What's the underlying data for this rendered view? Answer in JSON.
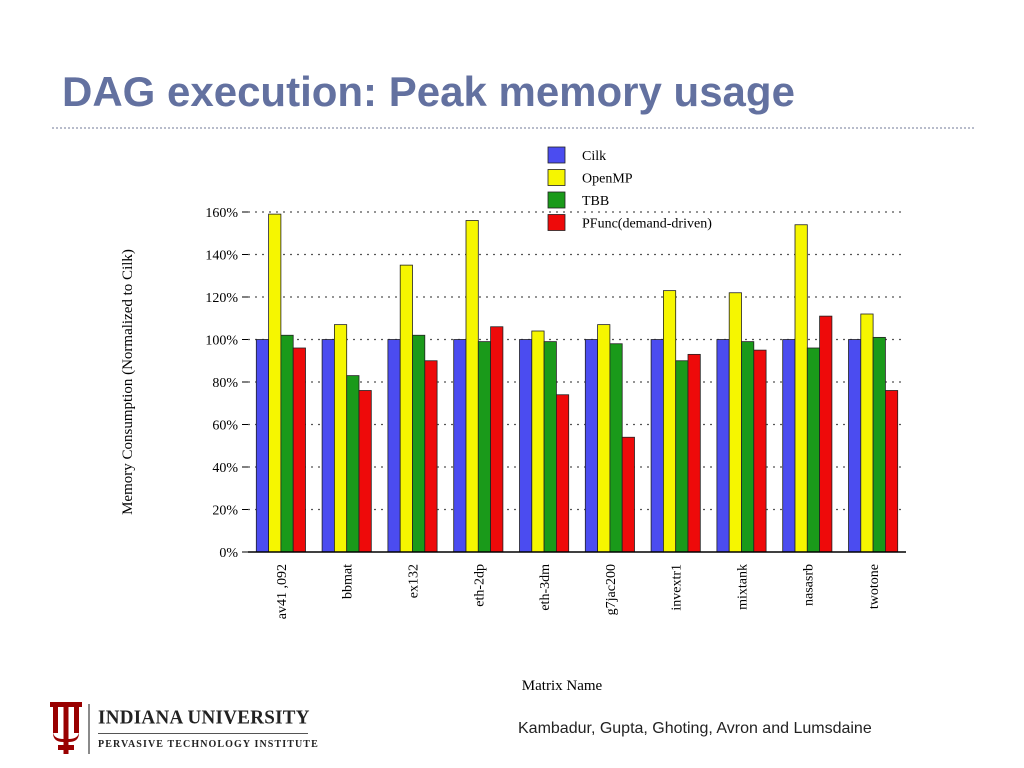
{
  "slide": {
    "title": "DAG execution: Peak memory usage",
    "footer": "Kambadur, Gupta, Ghoting, Avron and Lumsdaine",
    "logo": {
      "name": "INDIANA UNIVERSITY",
      "subtitle": "PERVASIVE TECHNOLOGY INSTITUTE",
      "color": "#990000"
    }
  },
  "colors": {
    "title": "#6371a0"
  },
  "chart_data": {
    "type": "bar",
    "title": "",
    "xlabel": "Matrix Name",
    "ylabel": "Memory Consumption (Normalized to Cilk)",
    "ylim": [
      0,
      160
    ],
    "yticks": [
      0,
      20,
      40,
      60,
      80,
      100,
      120,
      140,
      160
    ],
    "ytick_labels": [
      "0%",
      "20%",
      "40%",
      "60%",
      "80%",
      "100%",
      "120%",
      "140%",
      "160%"
    ],
    "grid": true,
    "legend_position": "top-center",
    "categories": [
      "av41 ,092",
      "bbmat",
      "ex132",
      "eth-2dp",
      "eth-3dm",
      "g7jac200",
      "invextr1",
      "mixtank",
      "nasasrb",
      "twotone"
    ],
    "series": [
      {
        "name": "Cilk",
        "color": "#4b4cf0",
        "values": [
          100,
          100,
          100,
          100,
          100,
          100,
          100,
          100,
          100,
          100
        ]
      },
      {
        "name": "OpenMP",
        "color": "#f6f600",
        "values": [
          159,
          107,
          135,
          156,
          104,
          107,
          123,
          122,
          154,
          112
        ]
      },
      {
        "name": "TBB",
        "color": "#1a9a1a",
        "values": [
          102,
          83,
          102,
          99,
          99,
          98,
          90,
          99,
          96,
          101
        ]
      },
      {
        "name": "PFunc(demand-driven)",
        "color": "#ee0a0a",
        "values": [
          96,
          76,
          90,
          106,
          74,
          54,
          93,
          95,
          111,
          76
        ]
      }
    ]
  }
}
